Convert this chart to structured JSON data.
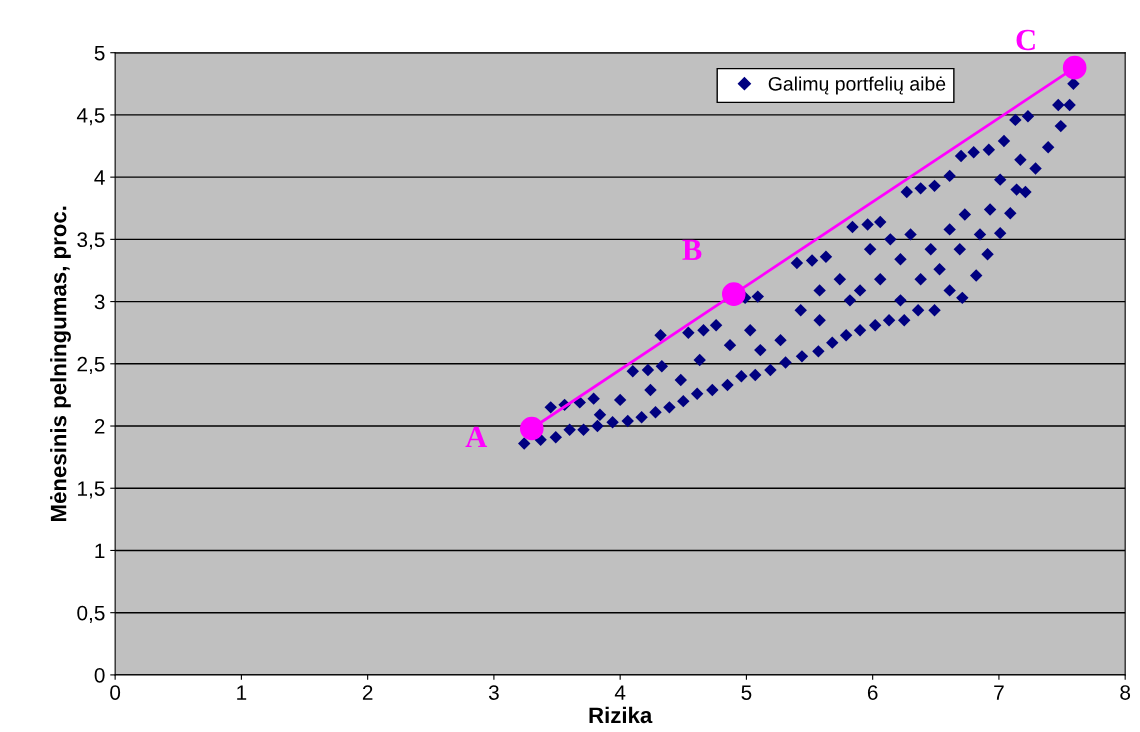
{
  "chart_data": {
    "type": "scatter",
    "xlabel": "Rizika",
    "ylabel": "Mėnesinis pelningumas, proc.",
    "xlim": [
      0,
      8
    ],
    "xticks": [
      0,
      1,
      2,
      3,
      4,
      5,
      6,
      7,
      8
    ],
    "ylim": [
      0,
      5
    ],
    "yticks": [
      0,
      {
        "value": 0.5,
        "label": "0,5"
      },
      1,
      {
        "value": 1.5,
        "label": "1,5"
      },
      2,
      {
        "value": 2.5,
        "label": "2,5"
      },
      3,
      {
        "value": 3.5,
        "label": "3,5"
      },
      4,
      {
        "value": 4.5,
        "label": "4,5"
      },
      5
    ],
    "grid": "y",
    "legend": "top right",
    "series": [
      {
        "name": "Galimų portfelių aibė",
        "marker": "diamond",
        "color": "#000080",
        "x": [
          3.24,
          3.37,
          3.49,
          3.6,
          3.71,
          3.82,
          3.94,
          4.06,
          4.17,
          4.28,
          4.39,
          4.5,
          4.61,
          4.73,
          4.85,
          4.96,
          5.07,
          5.19,
          5.31,
          5.44,
          5.57,
          5.68,
          5.79,
          5.9,
          6.02,
          6.13,
          6.25,
          6.36,
          6.49,
          6.71,
          6.82,
          6.91,
          7.01,
          7.09,
          7.21,
          7.29,
          7.39,
          7.49,
          7.56,
          7.59,
          3.45,
          3.56,
          3.68,
          3.79,
          4.1,
          4.22,
          4.33,
          4.32,
          4.54,
          4.66,
          4.76,
          4.99,
          5.09,
          5.84,
          5.96,
          6.06,
          6.27,
          6.38,
          6.49,
          6.61,
          6.7,
          6.8,
          6.92,
          7.04,
          7.13,
          7.23,
          7.47,
          5.4,
          5.52,
          5.63,
          4.63,
          5.03,
          5.43,
          5.58,
          5.82,
          6.06,
          6.22,
          6.46,
          6.61,
          6.73,
          6.38,
          6.53,
          6.69,
          6.85,
          6.93,
          7.01,
          7.14,
          7.17,
          5.98,
          6.14,
          5.27,
          5.11,
          4.87,
          4.48,
          4.24,
          4.0,
          3.84,
          5.74,
          5.58,
          5.9,
          6.22,
          6.61,
          6.3
        ],
        "values": [
          1.86,
          1.89,
          1.91,
          1.97,
          1.97,
          2.0,
          2.03,
          2.04,
          2.07,
          2.11,
          2.15,
          2.2,
          2.26,
          2.29,
          2.33,
          2.4,
          2.41,
          2.45,
          2.51,
          2.56,
          2.6,
          2.67,
          2.73,
          2.77,
          2.81,
          2.85,
          2.85,
          2.93,
          2.93,
          3.03,
          3.21,
          3.38,
          3.55,
          3.71,
          3.88,
          4.07,
          4.24,
          4.41,
          4.58,
          4.75,
          2.15,
          2.17,
          2.19,
          2.22,
          2.44,
          2.45,
          2.48,
          2.73,
          2.75,
          2.77,
          2.81,
          3.03,
          3.04,
          3.6,
          3.62,
          3.64,
          3.88,
          3.91,
          3.93,
          4.01,
          4.17,
          4.2,
          4.22,
          4.29,
          4.46,
          4.49,
          4.58,
          3.31,
          3.33,
          3.36,
          2.53,
          2.77,
          2.93,
          3.09,
          3.01,
          3.18,
          3.34,
          3.42,
          3.58,
          3.7,
          3.18,
          3.26,
          3.42,
          3.54,
          3.74,
          3.98,
          3.9,
          4.14,
          3.42,
          3.5,
          2.69,
          2.61,
          2.65,
          2.37,
          2.29,
          2.21,
          2.09,
          3.18,
          2.85,
          3.09,
          3.01,
          3.09,
          3.54
        ]
      },
      {
        "type": "line",
        "marker": "circle",
        "color": "#ff00ff",
        "x": [
          3.3,
          4.9,
          7.6
        ],
        "values": [
          1.98,
          3.06,
          4.88
        ]
      }
    ],
    "annotations": [
      {
        "text": "A",
        "x": 3.3,
        "y": 1.98
      },
      {
        "text": "B",
        "x": 4.9,
        "y": 3.06
      },
      {
        "text": "C",
        "x": 7.6,
        "y": 4.88
      }
    ]
  }
}
